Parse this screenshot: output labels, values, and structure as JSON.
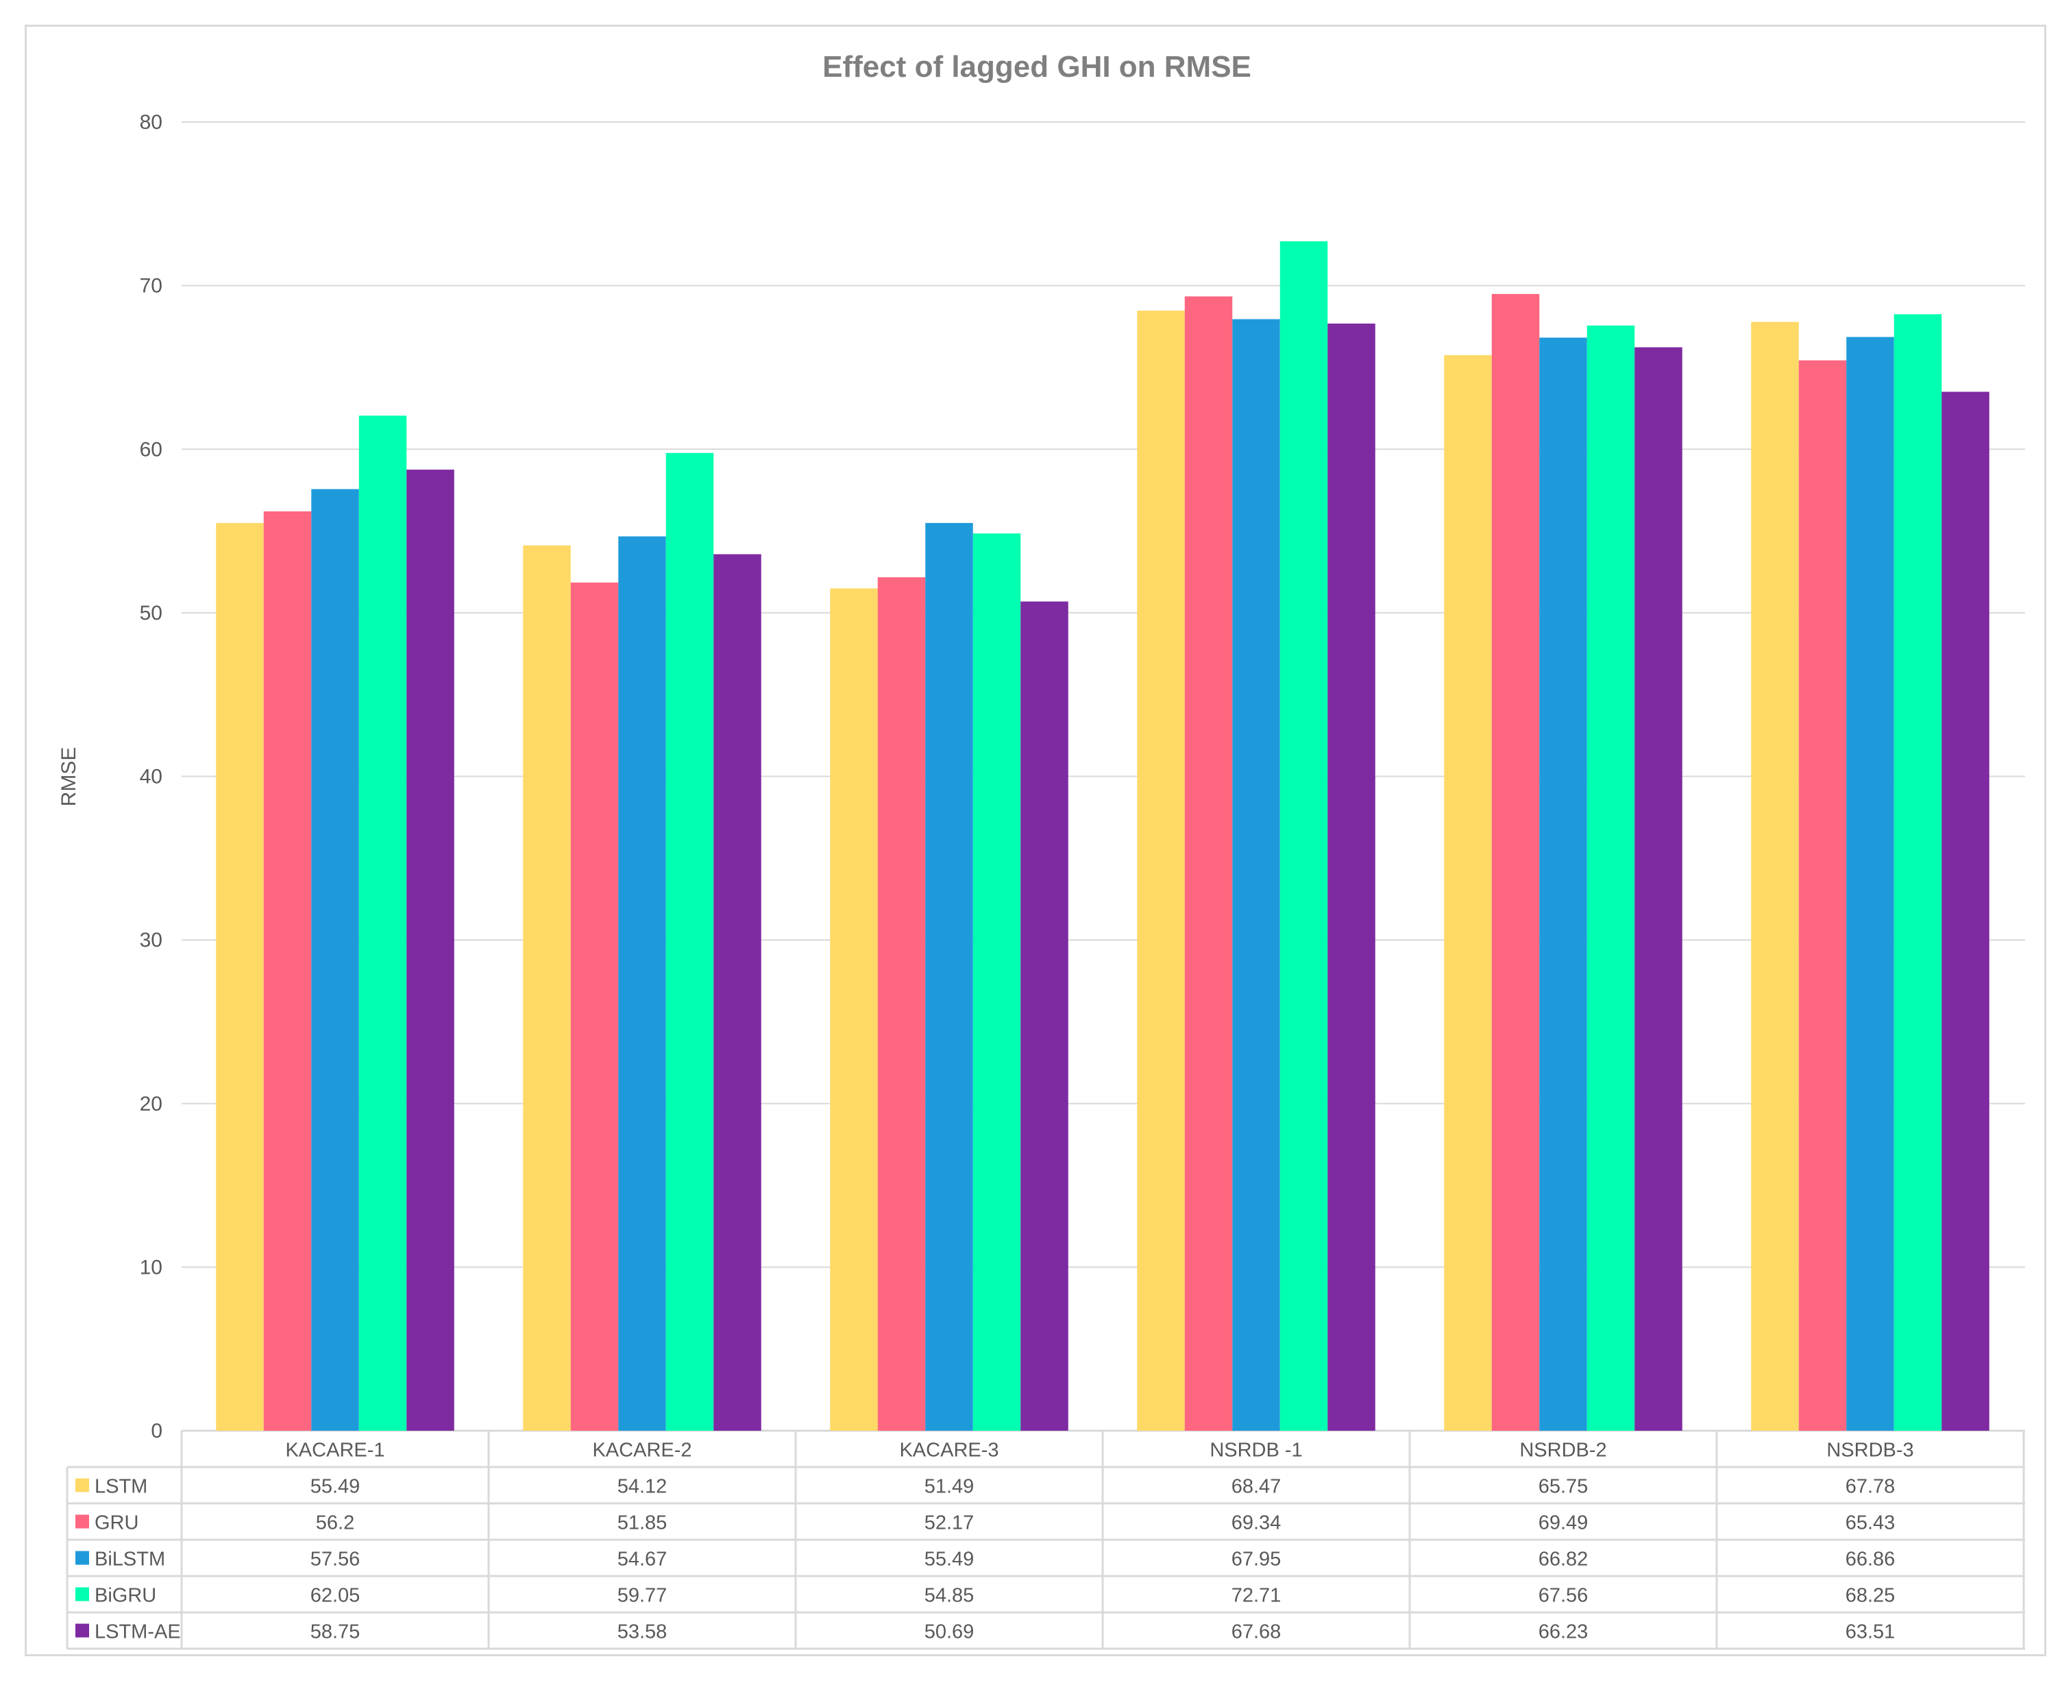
{
  "chart_data": {
    "type": "bar",
    "title": "Effect of lagged GHI on RMSE",
    "ylabel": "RMSE",
    "xlabel": "",
    "ylim": [
      0,
      80
    ],
    "yticks": [
      0,
      10,
      20,
      30,
      40,
      50,
      60,
      70,
      80
    ],
    "grid": true,
    "legend": "data-table-left",
    "categories": [
      "KACARE-1",
      "KACARE-2",
      "KACARE-3",
      "NSRDB -1",
      "NSRDB-2",
      "NSRDB-3"
    ],
    "series": [
      {
        "name": "LSTM",
        "color": "#FFD966",
        "values": [
          55.49,
          54.12,
          51.49,
          68.47,
          65.75,
          67.78
        ],
        "labels": [
          "55.49",
          "54.12",
          "51.49",
          "68.47",
          "65.75",
          "67.78"
        ]
      },
      {
        "name": "GRU",
        "color": "#FF6680",
        "values": [
          56.2,
          51.85,
          52.17,
          69.34,
          69.49,
          65.43
        ],
        "labels": [
          "56.2",
          "51.85",
          "52.17",
          "69.34",
          "69.49",
          "65.43"
        ]
      },
      {
        "name": "BiLSTM",
        "color": "#1E9ADB",
        "values": [
          57.56,
          54.67,
          55.49,
          67.95,
          66.82,
          66.86
        ],
        "labels": [
          "57.56",
          "54.67",
          "55.49",
          "67.95",
          "66.82",
          "66.86"
        ]
      },
      {
        "name": "BiGRU",
        "color": "#00FFB0",
        "values": [
          62.05,
          59.77,
          54.85,
          72.71,
          67.56,
          68.25
        ],
        "labels": [
          "62.05",
          "59.77",
          "54.85",
          "72.71",
          "67.56",
          "68.25"
        ]
      },
      {
        "name": "LSTM-AE",
        "color": "#7E2AA1",
        "values": [
          58.75,
          53.58,
          50.69,
          67.68,
          66.23,
          63.51
        ],
        "labels": [
          "58.75",
          "53.58",
          "50.69",
          "67.68",
          "66.23",
          "63.51"
        ]
      }
    ]
  }
}
